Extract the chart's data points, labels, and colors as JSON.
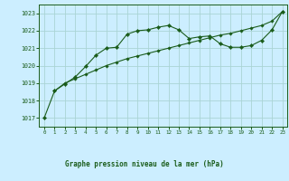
{
  "title": "Graphe pression niveau de la mer (hPa)",
  "background_color": "#cceeff",
  "grid_color": "#aad4d4",
  "line_color": "#1a5c1a",
  "xlim": [
    -0.5,
    23.5
  ],
  "ylim": [
    1016.5,
    1023.5
  ],
  "yticks": [
    1017,
    1018,
    1019,
    1020,
    1021,
    1022,
    1023
  ],
  "xticks": [
    0,
    1,
    2,
    3,
    4,
    5,
    6,
    7,
    8,
    9,
    10,
    11,
    12,
    13,
    14,
    15,
    16,
    17,
    18,
    19,
    20,
    21,
    22,
    23
  ],
  "series1_x": [
    0,
    1,
    2,
    3,
    4,
    5,
    6,
    7,
    8,
    9,
    10,
    11,
    12,
    13,
    14,
    15,
    16,
    17,
    18,
    19,
    20,
    21,
    22,
    23
  ],
  "series1_y": [
    1017.0,
    1018.55,
    1018.95,
    1019.35,
    1019.95,
    1020.6,
    1021.0,
    1021.05,
    1021.8,
    1022.0,
    1022.05,
    1022.2,
    1022.3,
    1022.05,
    1021.55,
    1021.65,
    1021.7,
    1021.25,
    1021.05,
    1021.05,
    1021.15,
    1021.45,
    1022.05,
    1023.1
  ],
  "series2_x": [
    1,
    2,
    3,
    4,
    5,
    6,
    7,
    8,
    9,
    10,
    11,
    12,
    13,
    14,
    15,
    16,
    17,
    18,
    19,
    20,
    21,
    22,
    23
  ],
  "series2_y": [
    1018.55,
    1019.0,
    1019.25,
    1019.5,
    1019.75,
    1020.0,
    1020.2,
    1020.4,
    1020.55,
    1020.7,
    1020.85,
    1021.0,
    1021.15,
    1021.3,
    1021.45,
    1021.6,
    1021.75,
    1021.85,
    1022.0,
    1022.15,
    1022.3,
    1022.55,
    1023.1
  ],
  "fig_width": 3.2,
  "fig_height": 2.0,
  "dpi": 100
}
